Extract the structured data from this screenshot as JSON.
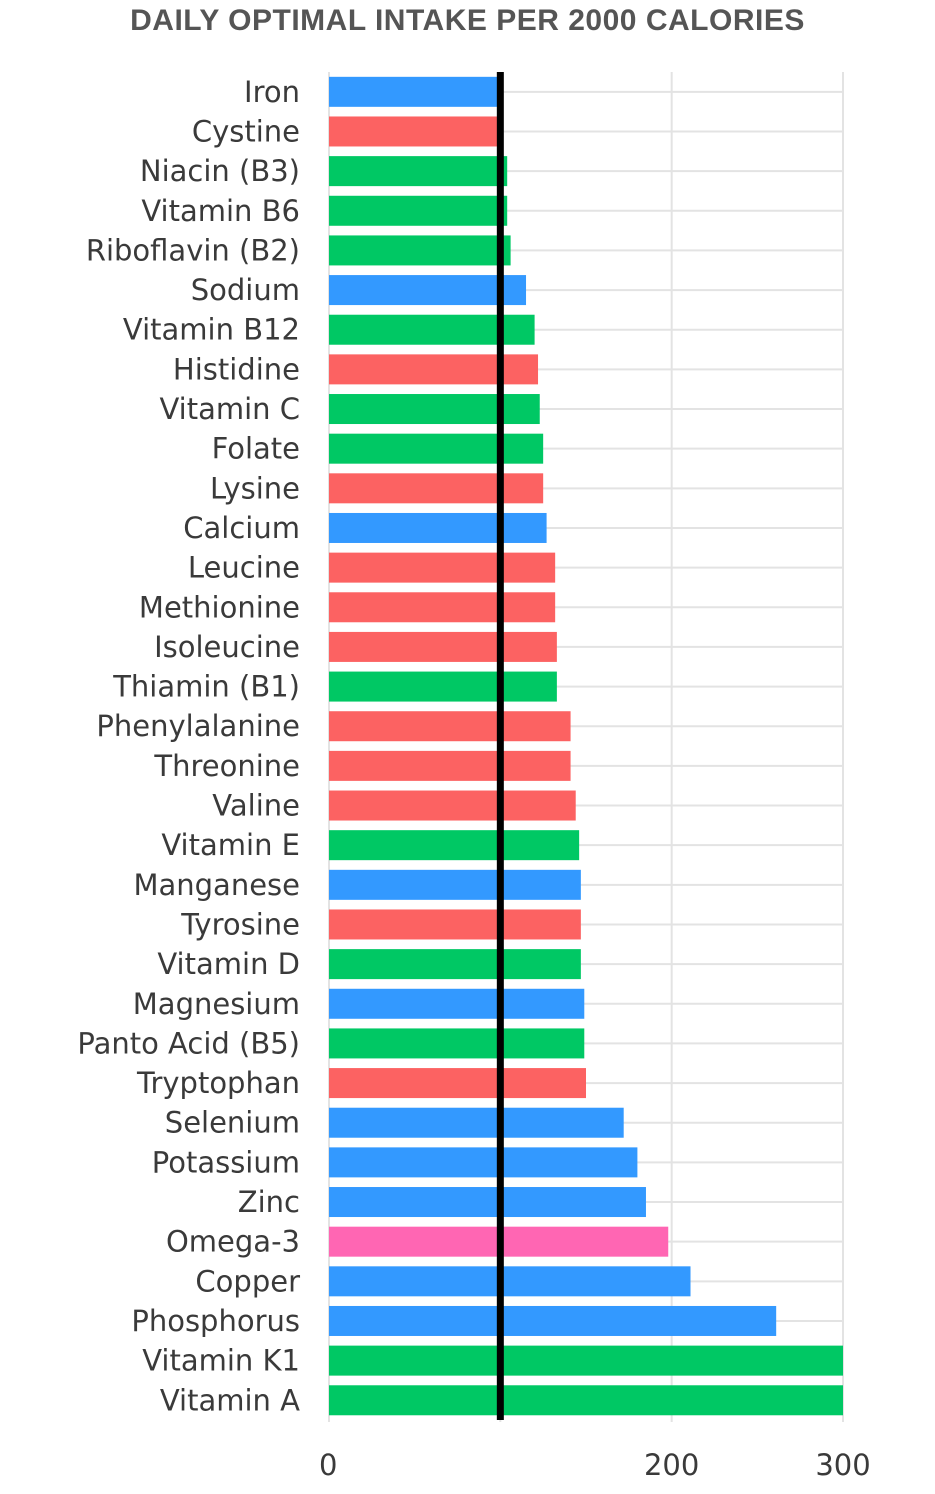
{
  "chart_data": {
    "type": "bar",
    "orientation": "horizontal",
    "title": "DAILY OPTIMAL INTAKE PER 2000 CALORIES",
    "xlabel": "",
    "ylabel": "",
    "xlim": [
      0,
      300
    ],
    "xticks": [
      0,
      200,
      300
    ],
    "gridlines": [
      0,
      100,
      200,
      300
    ],
    "reference_line": 100,
    "grid": true,
    "legend": "none",
    "categories": [
      "Iron",
      "Cystine",
      "Niacin (B3)",
      "Vitamin B6",
      "Riboflavin (B2)",
      "Sodium",
      "Vitamin B12",
      "Histidine",
      "Vitamin C",
      "Folate",
      "Lysine",
      "Calcium",
      "Leucine",
      "Methionine",
      "Isoleucine",
      "Thiamin (B1)",
      "Phenylalanine",
      "Threonine",
      "Valine",
      "Vitamin E",
      "Manganese",
      "Tyrosine",
      "Vitamin D",
      "Magnesium",
      "Panto Acid (B5)",
      "Tryptophan",
      "Selenium",
      "Potassium",
      "Zinc",
      "Omega-3",
      "Copper",
      "Phosphorus",
      "Vitamin K1",
      "Vitamin A"
    ],
    "values": [
      99,
      101,
      104,
      104,
      106,
      115,
      120,
      122,
      123,
      125,
      125,
      127,
      132,
      132,
      133,
      133,
      141,
      141,
      144,
      146,
      147,
      147,
      147,
      149,
      149,
      150,
      172,
      180,
      185,
      198,
      211,
      261,
      300,
      300
    ],
    "group": [
      "mineral",
      "amino",
      "vitamin",
      "vitamin",
      "vitamin",
      "mineral",
      "vitamin",
      "amino",
      "vitamin",
      "vitamin",
      "amino",
      "mineral",
      "amino",
      "amino",
      "amino",
      "vitamin",
      "amino",
      "amino",
      "amino",
      "vitamin",
      "mineral",
      "amino",
      "vitamin",
      "mineral",
      "vitamin",
      "amino",
      "mineral",
      "mineral",
      "mineral",
      "fatty",
      "mineral",
      "mineral",
      "vitamin",
      "vitamin"
    ],
    "colors": {
      "mineral": "#3399ff",
      "amino": "#fc6262",
      "vitamin": "#00c864",
      "fatty": "#ff66b3",
      "reference": "#000000",
      "grid": "#e3e3e3"
    }
  }
}
